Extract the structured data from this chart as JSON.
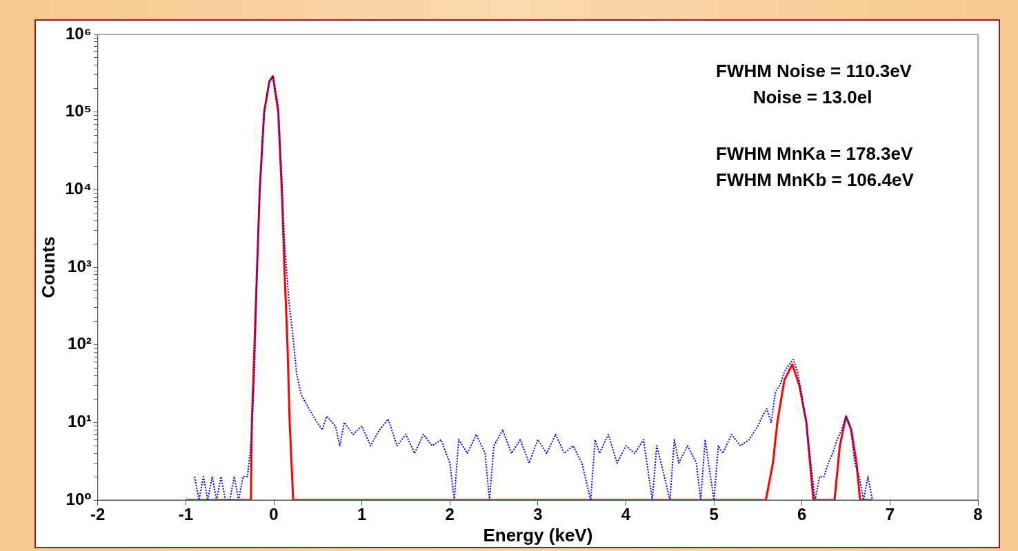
{
  "chart_data": {
    "type": "line",
    "xlabel": "Energy (keV)",
    "ylabel": "Counts",
    "log": "y",
    "grid": false,
    "legend": false,
    "marker": "none",
    "xlim": [
      -2,
      8
    ],
    "xticks": [
      -2,
      -1,
      0,
      1,
      2,
      3,
      4,
      5,
      6,
      7,
      8
    ],
    "ylim": [
      1,
      1000000
    ],
    "yticks": [
      {
        "value": 1,
        "label": "10⁰"
      },
      {
        "value": 2,
        "label": null
      },
      {
        "value": 3,
        "label": null
      },
      {
        "value": 4,
        "label": null
      },
      {
        "value": 5,
        "label": null
      },
      {
        "value": 6,
        "label": null
      },
      {
        "value": 7,
        "label": null
      },
      {
        "value": 8,
        "label": null
      },
      {
        "value": 9,
        "label": null
      },
      {
        "value": 10,
        "label": "10¹"
      },
      {
        "value": 20,
        "label": null
      },
      {
        "value": 30,
        "label": null
      },
      {
        "value": 40,
        "label": null
      },
      {
        "value": 50,
        "label": null
      },
      {
        "value": 60,
        "label": null
      },
      {
        "value": 70,
        "label": null
      },
      {
        "value": 80,
        "label": null
      },
      {
        "value": 90,
        "label": null
      },
      {
        "value": 100,
        "label": "10²"
      },
      {
        "value": 200,
        "label": null
      },
      {
        "value": 300,
        "label": null
      },
      {
        "value": 400,
        "label": null
      },
      {
        "value": 500,
        "label": null
      },
      {
        "value": 600,
        "label": null
      },
      {
        "value": 700,
        "label": null
      },
      {
        "value": 800,
        "label": null
      },
      {
        "value": 900,
        "label": null
      },
      {
        "value": 1000,
        "label": "10³"
      },
      {
        "value": 2000,
        "label": null
      },
      {
        "value": 3000,
        "label": null
      },
      {
        "value": 4000,
        "label": null
      },
      {
        "value": 5000,
        "label": null
      },
      {
        "value": 6000,
        "label": null
      },
      {
        "value": 7000,
        "label": null
      },
      {
        "value": 8000,
        "label": null
      },
      {
        "value": 9000,
        "label": null
      },
      {
        "value": 10000,
        "label": "10⁴"
      },
      {
        "value": 20000,
        "label": null
      },
      {
        "value": 30000,
        "label": null
      },
      {
        "value": 40000,
        "label": null
      },
      {
        "value": 50000,
        "label": null
      },
      {
        "value": 60000,
        "label": null
      },
      {
        "value": 70000,
        "label": null
      },
      {
        "value": 80000,
        "label": null
      },
      {
        "value": 90000,
        "label": null
      },
      {
        "value": 100000,
        "label": "10⁵"
      },
      {
        "value": 200000,
        "label": null
      },
      {
        "value": 300000,
        "label": null
      },
      {
        "value": 400000,
        "label": null
      },
      {
        "value": 500000,
        "label": null
      },
      {
        "value": 600000,
        "label": null
      },
      {
        "value": 700000,
        "label": null
      },
      {
        "value": 800000,
        "label": null
      },
      {
        "value": 900000,
        "label": null
      },
      {
        "value": 1000000,
        "label": "10⁶"
      }
    ],
    "annotations": [
      "FWHM Noise = 110.3eV",
      "Noise = 13.0el",
      "FWHM MnKa = 178.3eV",
      "FWHM MnKb = 106.4eV"
    ],
    "series": [
      {
        "color": "#0000ff",
        "line_style": "dotted",
        "x": [
          -0.9,
          -0.85,
          -0.8,
          -0.75,
          -0.7,
          -0.65,
          -0.6,
          -0.55,
          -0.5,
          -0.45,
          -0.4,
          -0.35,
          -0.3,
          -0.27,
          -0.25,
          -0.22,
          -0.19,
          -0.16,
          -0.11,
          -0.05,
          -0.01,
          0.05,
          0.09,
          0.12,
          0.17,
          0.22,
          0.26,
          0.31,
          0.4,
          0.47,
          0.55,
          0.6,
          0.7,
          0.75,
          0.8,
          0.9,
          1.0,
          1.1,
          1.2,
          1.3,
          1.4,
          1.5,
          1.6,
          1.7,
          1.8,
          1.9,
          2.0,
          2.05,
          2.1,
          2.2,
          2.3,
          2.4,
          2.45,
          2.5,
          2.6,
          2.7,
          2.8,
          2.9,
          3.0,
          3.1,
          3.2,
          3.3,
          3.4,
          3.5,
          3.6,
          3.65,
          3.7,
          3.8,
          3.9,
          4.0,
          4.1,
          4.2,
          4.3,
          4.35,
          4.4,
          4.5,
          4.55,
          4.6,
          4.7,
          4.8,
          4.85,
          4.9,
          5.0,
          5.05,
          5.1,
          5.2,
          5.3,
          5.4,
          5.5,
          5.55,
          5.6,
          5.65,
          5.7,
          5.75,
          5.8,
          5.85,
          5.9,
          5.95,
          6.0,
          6.05,
          6.1,
          6.15,
          6.2,
          6.25,
          6.3,
          6.35,
          6.4,
          6.45,
          6.5,
          6.55,
          6.6,
          6.65,
          6.7,
          6.75,
          6.8
        ],
        "values": [
          2,
          1,
          2,
          1,
          2,
          1,
          2,
          1,
          1,
          2,
          1,
          2,
          2,
          4,
          8,
          40,
          1000,
          10000,
          100000,
          250000,
          290000,
          120000,
          15000,
          2300,
          380,
          120,
          42,
          23,
          15,
          11,
          8,
          12,
          9,
          5,
          10,
          7,
          9,
          5,
          8,
          11,
          5,
          7,
          4,
          7,
          5,
          6,
          3,
          1,
          6,
          4,
          7,
          4,
          1,
          5,
          8,
          4,
          6,
          3,
          6,
          4,
          7,
          4,
          5,
          3,
          1,
          6,
          4,
          7,
          3,
          5,
          4,
          6,
          1,
          5,
          3,
          1,
          6,
          3,
          5,
          3,
          1,
          6,
          1,
          5,
          4,
          7,
          5,
          6,
          9,
          12,
          15,
          10,
          25,
          30,
          45,
          55,
          65,
          45,
          22,
          10,
          3,
          1,
          2,
          2,
          3,
          4,
          6,
          8,
          12,
          9,
          3,
          2,
          1,
          2,
          1
        ]
      },
      {
        "color": "#ff0000",
        "line_style": "solid",
        "x": [
          -1,
          -0.26,
          -0.25,
          -0.19,
          -0.16,
          -0.11,
          -0.05,
          -0.01,
          0.05,
          0.09,
          0.12,
          0.155,
          0.18,
          0.22,
          5.59,
          5.67,
          5.72,
          5.8,
          5.89,
          5.97,
          6.05,
          6.13,
          6.37,
          6.43,
          6.5,
          6.56,
          6.62,
          6.66,
          6.8
        ],
        "values": [
          1,
          1,
          10,
          1000,
          10000,
          100000,
          250000,
          290000,
          100000,
          10000,
          1000,
          100,
          10,
          1,
          1,
          3,
          10,
          35,
          56,
          30,
          10,
          1,
          1,
          5,
          12,
          8,
          3,
          1,
          1
        ]
      }
    ]
  }
}
